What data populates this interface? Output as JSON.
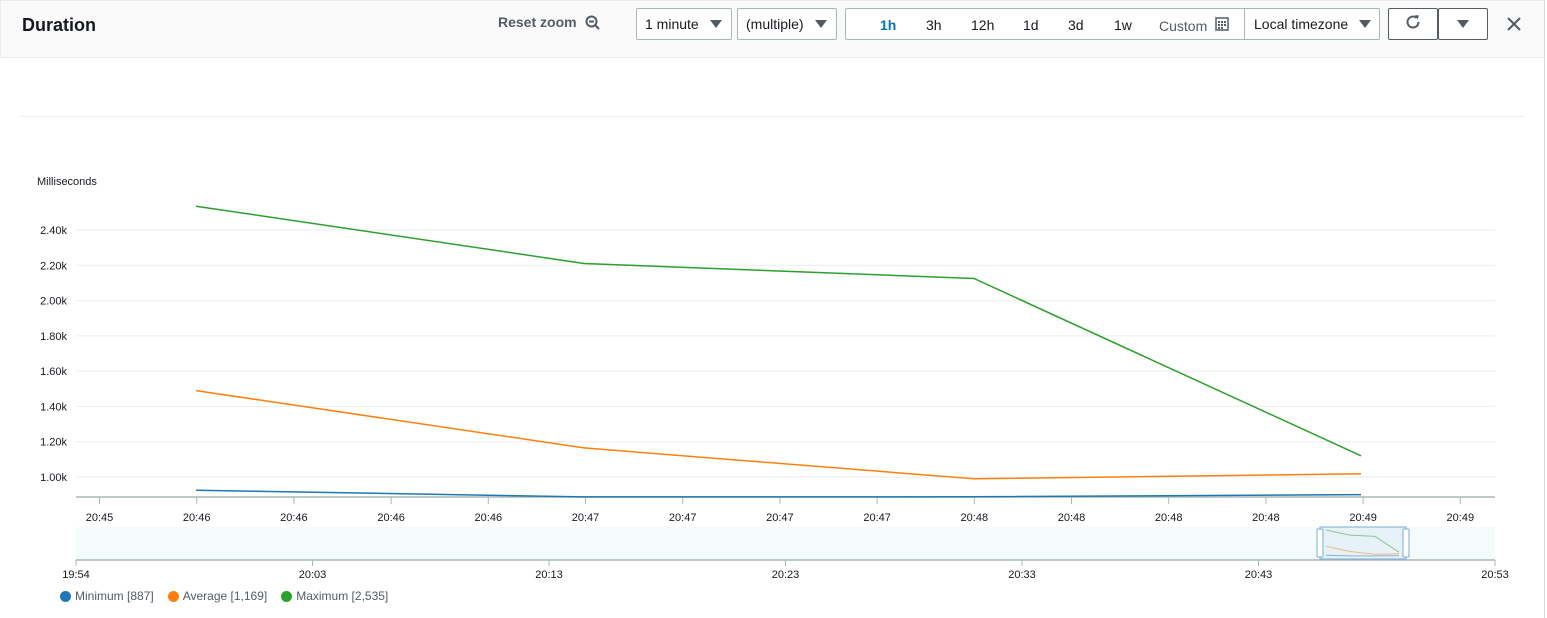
{
  "header": {
    "title": "Duration",
    "reset_zoom_label": "Reset zoom",
    "period_select": "1 minute",
    "stat_select": "(multiple)",
    "ranges": [
      "1h",
      "3h",
      "12h",
      "1d",
      "3d",
      "1w"
    ],
    "active_range": "1h",
    "custom_label": "Custom",
    "timezone_select": "Local timezone"
  },
  "colors": {
    "minimum": "#1f77b4",
    "average": "#ff7f0e",
    "maximum": "#2ca02c",
    "active_range": "#0073bb"
  },
  "legend": [
    {
      "label": "Minimum [887]",
      "color_key": "minimum"
    },
    {
      "label": "Average [1,169]",
      "color_key": "average"
    },
    {
      "label": "Maximum [2,535]",
      "color_key": "maximum"
    }
  ],
  "chart_data": {
    "type": "line",
    "ylabel": "Milliseconds",
    "y_ticks": [
      "2.40k",
      "2.20k",
      "2.00k",
      "1.80k",
      "1.60k",
      "1.40k",
      "1.20k",
      "1.00k"
    ],
    "y_tick_values": [
      2400,
      2200,
      2000,
      1800,
      1600,
      1400,
      1200,
      1000
    ],
    "ylim": [
      880,
      2400
    ],
    "x_ticks": [
      "20:45",
      "20:46",
      "20:46",
      "20:46",
      "20:46",
      "20:47",
      "20:47",
      "20:47",
      "20:47",
      "20:48",
      "20:48",
      "20:48",
      "20:48",
      "20:49",
      "20:49"
    ],
    "x": [
      "20:46",
      "20:47",
      "20:48",
      "20:49"
    ],
    "series": [
      {
        "name": "Minimum",
        "color_key": "minimum",
        "values": [
          925,
          887,
          888,
          900
        ]
      },
      {
        "name": "Average",
        "color_key": "average",
        "values": [
          1490,
          1165,
          990,
          1018
        ]
      },
      {
        "name": "Maximum",
        "color_key": "maximum",
        "values": [
          2535,
          2210,
          2125,
          1120
        ]
      }
    ],
    "navigator_ticks": [
      "19:54",
      "20:03",
      "20:13",
      "20:23",
      "20:33",
      "20:43",
      "20:53"
    ],
    "grid": true
  }
}
